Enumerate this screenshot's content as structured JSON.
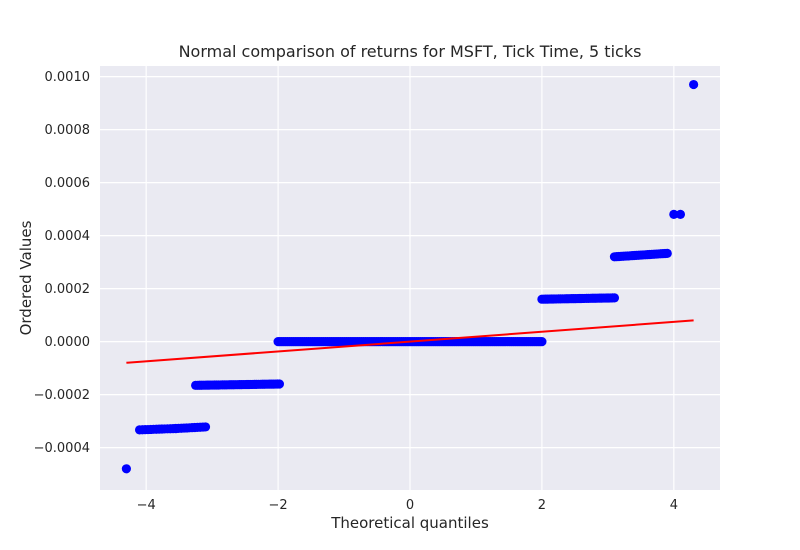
{
  "chart_data": {
    "type": "scatter",
    "title": "Normal comparison of returns for MSFT, Tick Time, 5 ticks",
    "xlabel": "Theoretical quantiles",
    "ylabel": "Ordered Values",
    "xlim": [
      -4.7,
      4.7
    ],
    "ylim": [
      -0.00056,
      0.00104
    ],
    "x_ticks": [
      -4,
      -2,
      0,
      2,
      4
    ],
    "x_tick_labels": [
      "−4",
      "−2",
      "0",
      "2",
      "4"
    ],
    "y_ticks": [
      -0.0004,
      -0.0002,
      0.0,
      0.0002,
      0.0004,
      0.0006,
      0.0008,
      0.001
    ],
    "y_tick_labels": [
      "−0.0004",
      "−0.0002",
      "0.0000",
      "0.0002",
      "0.0004",
      "0.0006",
      "0.0008",
      "0.0010"
    ],
    "grid": true,
    "background_color": "#eaeaf2",
    "grid_color": "#ffffff",
    "marker_color": "#0000ff",
    "line_color": "#ff0000",
    "series": [
      {
        "kind": "points",
        "segments": [
          {
            "x_start": -4.3,
            "x_end": -4.3,
            "y_start": -0.00048,
            "y_end": -0.00048,
            "count": 1
          },
          {
            "x_start": -4.1,
            "x_end": -3.55,
            "y_start": -0.000333,
            "y_end": -0.000328,
            "count": 14
          },
          {
            "x_start": -3.55,
            "x_end": -3.1,
            "y_start": -0.000328,
            "y_end": -0.000322,
            "count": 12
          },
          {
            "x_start": -3.25,
            "x_end": -1.98,
            "y_start": -0.000165,
            "y_end": -0.00016,
            "count": 45
          },
          {
            "x_start": -2.0,
            "x_end": 2.0,
            "y_start": 0.0,
            "y_end": 0.0,
            "count": 140
          },
          {
            "x_start": 2.0,
            "x_end": 3.1,
            "y_start": 0.00016,
            "y_end": 0.000165,
            "count": 40
          },
          {
            "x_start": 3.1,
            "x_end": 3.9,
            "y_start": 0.00032,
            "y_end": 0.000333,
            "count": 25
          },
          {
            "x_start": 4.0,
            "x_end": 4.1,
            "y_start": 0.00048,
            "y_end": 0.00048,
            "count": 2
          },
          {
            "x_start": 4.3,
            "x_end": 4.3,
            "y_start": 0.00097,
            "y_end": 0.00097,
            "count": 1
          }
        ]
      },
      {
        "kind": "fit-line",
        "x": [
          -4.3,
          4.3
        ],
        "y": [
          -8e-05,
          8e-05
        ]
      }
    ]
  }
}
